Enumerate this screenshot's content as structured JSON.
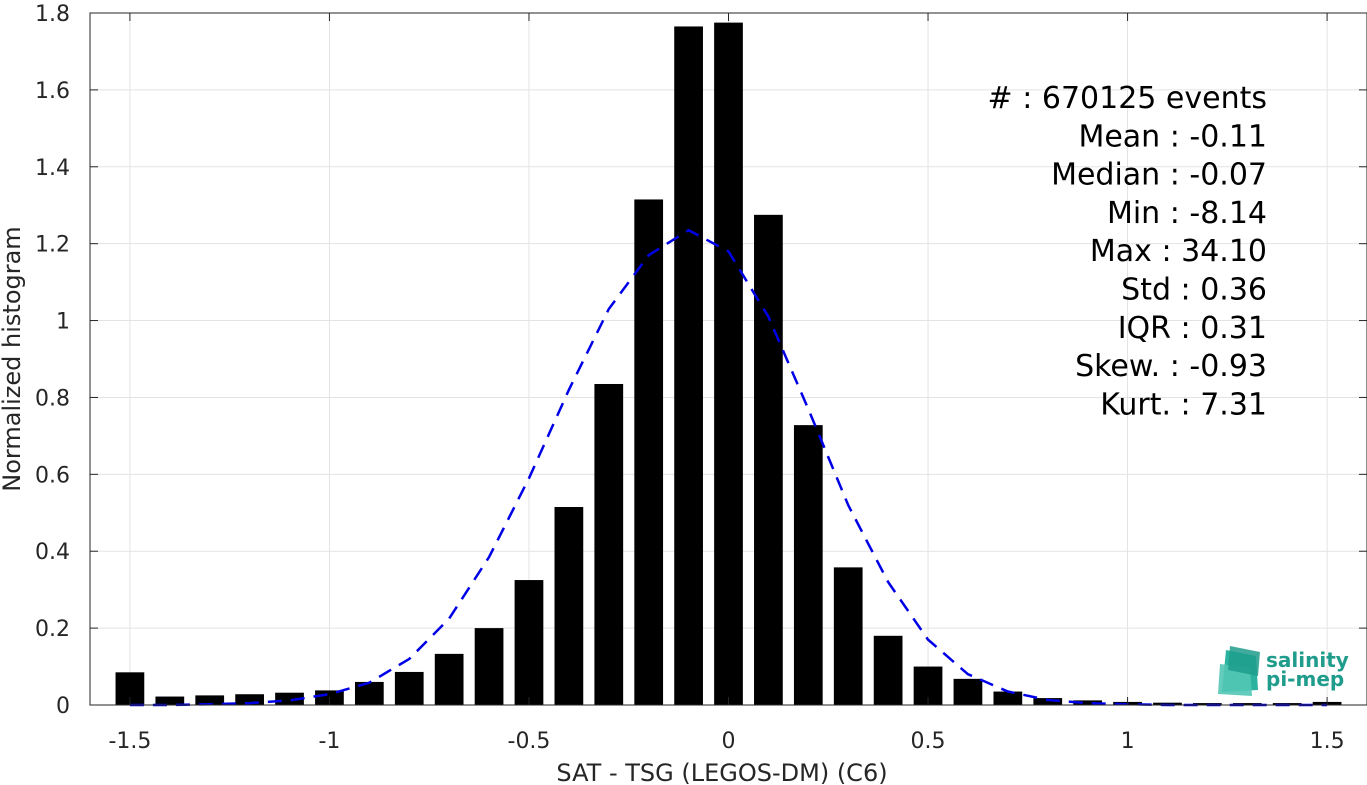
{
  "chart_data": {
    "type": "bar",
    "xlabel": "SAT - TSG (LEGOS-DM) (C6)",
    "ylabel": "Normalized histogram",
    "xlim": [
      -1.6,
      1.6
    ],
    "ylim": [
      0,
      1.8
    ],
    "xticks": [
      -1.5,
      -1,
      -0.5,
      0,
      0.5,
      1,
      1.5
    ],
    "xtick_labels": [
      "-1.5",
      "-1",
      "-0.5",
      "0",
      "0.5",
      "1",
      "1.5"
    ],
    "yticks": [
      0,
      0.2,
      0.4,
      0.6,
      0.8,
      1,
      1.2,
      1.4,
      1.6,
      1.8
    ],
    "ytick_labels": [
      "0",
      "0.2",
      "0.4",
      "0.6",
      "0.8",
      "1",
      "1.2",
      "1.4",
      "1.6",
      "1.8"
    ],
    "grid": true,
    "bar_width": 0.072,
    "series": [
      {
        "type": "bar",
        "color": "#000000",
        "x": [
          -1.5,
          -1.4,
          -1.3,
          -1.2,
          -1.1,
          -1.0,
          -0.9,
          -0.8,
          -0.7,
          -0.6,
          -0.5,
          -0.4,
          -0.3,
          -0.2,
          -0.1,
          0.0,
          0.1,
          0.2,
          0.3,
          0.4,
          0.5,
          0.6,
          0.7,
          0.8,
          0.9,
          1.0,
          1.1,
          1.2,
          1.3,
          1.4,
          1.5
        ],
        "values": [
          0.085,
          0.022,
          0.025,
          0.028,
          0.032,
          0.038,
          0.06,
          0.086,
          0.133,
          0.2,
          0.325,
          0.515,
          0.835,
          1.315,
          1.765,
          1.775,
          1.275,
          0.728,
          0.358,
          0.18,
          0.1,
          0.068,
          0.035,
          0.018,
          0.012,
          0.008,
          0.006,
          0.005,
          0.005,
          0.005,
          0.008
        ]
      },
      {
        "type": "line",
        "style": "dashed",
        "color": "#0000e6",
        "x": [
          -1.5,
          -1.4,
          -1.3,
          -1.2,
          -1.1,
          -1.0,
          -0.9,
          -0.8,
          -0.7,
          -0.6,
          -0.5,
          -0.4,
          -0.3,
          -0.2,
          -0.1,
          0.0,
          0.1,
          0.2,
          0.3,
          0.4,
          0.5,
          0.6,
          0.7,
          0.8,
          0.9,
          1.0,
          1.1,
          1.2,
          1.3,
          1.4,
          1.5
        ],
        "values": [
          0.0,
          0.0,
          0.002,
          0.005,
          0.012,
          0.028,
          0.058,
          0.12,
          0.225,
          0.385,
          0.59,
          0.82,
          1.03,
          1.17,
          1.235,
          1.18,
          1.01,
          0.77,
          0.52,
          0.32,
          0.17,
          0.08,
          0.035,
          0.013,
          0.005,
          0.002,
          0.0,
          0.0,
          0.0,
          0.0,
          0.0
        ]
      }
    ],
    "stats": [
      "#  : 670125 events",
      "Mean : -0.11",
      "Median : -0.07",
      "Min : -8.14",
      "Max : 34.10",
      "Std : 0.36",
      "IQR : 0.31",
      "Skew. : -0.93",
      "Kurt. : 7.31"
    ]
  },
  "logo": {
    "line1": "salinity",
    "line2": "pi-mep",
    "color": "#1f9c8c"
  }
}
